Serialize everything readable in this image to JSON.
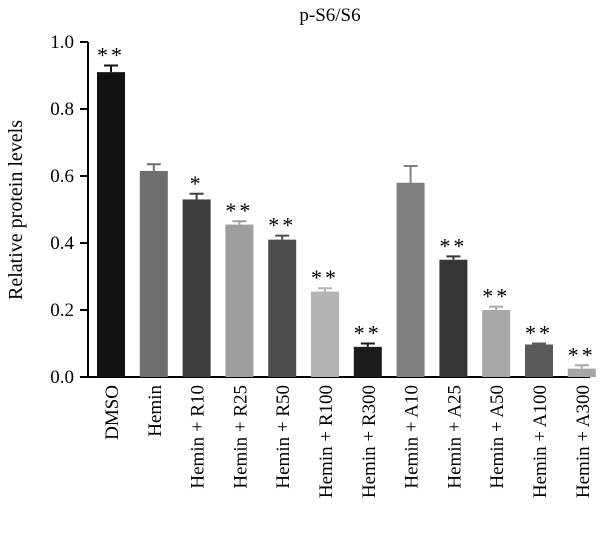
{
  "chart_data": {
    "type": "bar",
    "title": "p-S6/S6",
    "xlabel": "",
    "ylabel": "Relative protein levels",
    "ylim": [
      0,
      1.0
    ],
    "yticks": [
      "0.0",
      "0.2",
      "0.4",
      "0.6",
      "0.8",
      "1.0"
    ],
    "ytick_values": [
      0,
      0.2,
      0.4,
      0.6,
      0.8,
      1.0
    ],
    "grid": false,
    "legend": "none",
    "categories": [
      "DMSO",
      "Hemin",
      "Hemin + R10",
      "Hemin + R25",
      "Hemin + R50",
      "Hemin + R100",
      "Hemin + R300",
      "Hemin + A10",
      "Hemin + A25",
      "Hemin + A50",
      "Hemin + A100",
      "Hemin + A300"
    ],
    "values": [
      0.91,
      0.615,
      0.53,
      0.455,
      0.41,
      0.255,
      0.09,
      0.58,
      0.35,
      0.2,
      0.097,
      0.025
    ],
    "errors": [
      0.02,
      0.02,
      0.017,
      0.01,
      0.012,
      0.01,
      0.01,
      0.05,
      0.01,
      0.01,
      0.003,
      0.01
    ],
    "significance": [
      "**",
      "",
      "*",
      "**",
      "**",
      "**",
      "**",
      "",
      "**",
      "**",
      "**",
      "**"
    ],
    "bar_colors": [
      "#111111",
      "#6e6e6e",
      "#3e3e3e",
      "#9e9e9e",
      "#4d4d4d",
      "#b3b3b3",
      "#1c1c1c",
      "#7f7f7f",
      "#363636",
      "#a8a8a8",
      "#595959",
      "#a6a6a6"
    ]
  }
}
